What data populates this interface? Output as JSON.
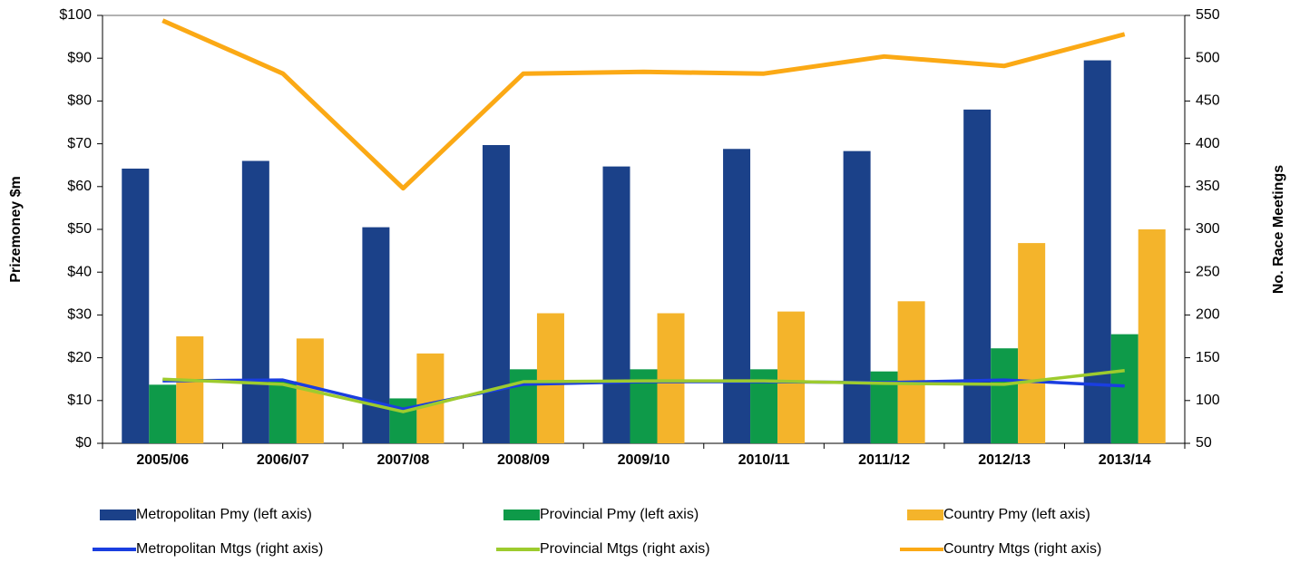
{
  "chart_data": {
    "type": "bar",
    "categories": [
      "2005/06",
      "2006/07",
      "2007/08",
      "2008/09",
      "2009/10",
      "2010/11",
      "2011/12",
      "2012/13",
      "2013/14"
    ],
    "y_label": "Prizemoney $m",
    "y2_label": "No. Race Meetings",
    "ylim": [
      0,
      100
    ],
    "yticks": [
      {
        "value": 0,
        "label": "$0"
      },
      {
        "value": 10,
        "label": "$10"
      },
      {
        "value": 20,
        "label": "$20"
      },
      {
        "value": 30,
        "label": "$30"
      },
      {
        "value": 40,
        "label": "$40"
      },
      {
        "value": 50,
        "label": "$50"
      },
      {
        "value": 60,
        "label": "$60"
      },
      {
        "value": 70,
        "label": "$70"
      },
      {
        "value": 80,
        "label": "$80"
      },
      {
        "value": 90,
        "label": "$90"
      },
      {
        "value": 100,
        "label": "$100"
      }
    ],
    "y2lim": [
      50,
      550
    ],
    "y2ticks": [
      50,
      100,
      150,
      200,
      250,
      300,
      350,
      400,
      450,
      500,
      550
    ],
    "series": [
      {
        "name": "Metropolitan Pmy (left axis)",
        "type": "bar",
        "color": "#1b4189",
        "values": [
          64.2,
          66,
          50.5,
          69.7,
          64.7,
          68.8,
          68.3,
          78,
          89.5
        ]
      },
      {
        "name": "Provincial Pmy (left axis)",
        "type": "bar",
        "color": "#0e9a49",
        "values": [
          13.7,
          14.5,
          10.5,
          17.3,
          17.3,
          17.3,
          16.8,
          22.2,
          25.5
        ]
      },
      {
        "name": "Country Pmy (left axis)",
        "type": "bar",
        "color": "#f4b42b",
        "values": [
          25,
          24.5,
          21,
          30.4,
          30.4,
          30.8,
          33.2,
          46.8,
          50
        ]
      },
      {
        "name": "Metropolitan Mtgs (right axis)",
        "type": "line",
        "axis": "y2",
        "color": "#1a3ee0",
        "values": [
          123,
          124,
          90,
          119,
          122,
          122,
          121,
          124,
          117
        ]
      },
      {
        "name": "Provincial Mtgs (right axis)",
        "type": "line",
        "axis": "y2",
        "color": "#9dcb2e",
        "values": [
          125,
          119,
          87,
          122,
          123,
          123,
          120,
          119,
          135
        ]
      },
      {
        "name": "Country Mtgs (right axis)",
        "type": "line",
        "axis": "y2",
        "color": "#fba915",
        "values": [
          544,
          482,
          348,
          482,
          484,
          482,
          502,
          491,
          528
        ]
      }
    ]
  }
}
